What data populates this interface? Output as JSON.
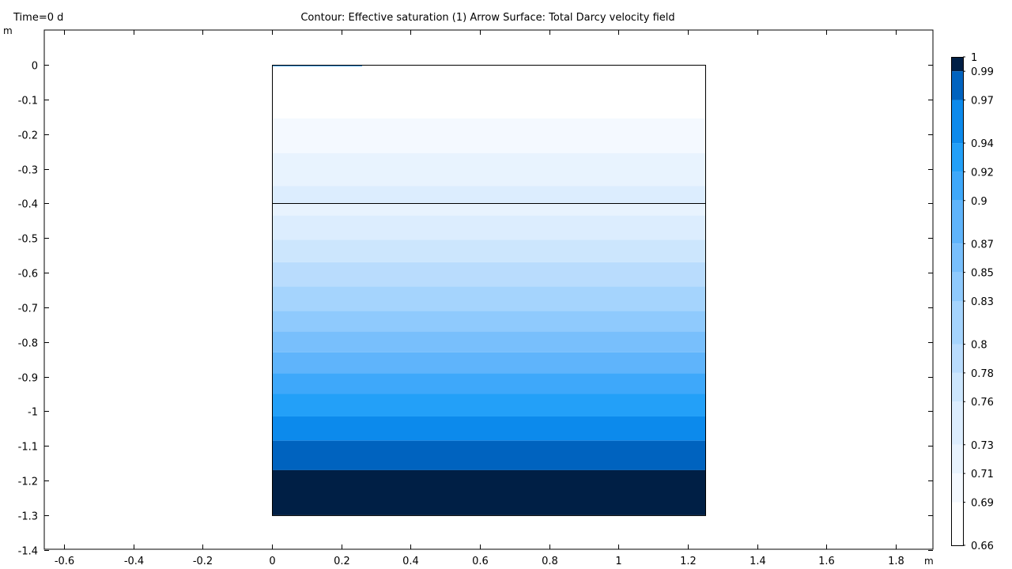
{
  "header": {
    "time_label": "Time=0 d",
    "title": "Contour: Effective saturation (1)  Arrow Surface: Total Darcy velocity field"
  },
  "axes": {
    "x_unit": "m",
    "y_unit": "m"
  },
  "chart_data": {
    "type": "heatmap",
    "title": "Contour: Effective saturation (1)  Arrow Surface: Total Darcy velocity field",
    "xlabel": "m",
    "ylabel": "m",
    "xlim": [
      -0.66,
      1.91
    ],
    "ylim": [
      -1.4,
      0.1
    ],
    "x_ticks": [
      "-0.6",
      "-0.4",
      "-0.2",
      "0",
      "0.2",
      "0.4",
      "0.6",
      "0.8",
      "1",
      "1.2",
      "1.4",
      "1.6",
      "1.8"
    ],
    "x_tick_values": [
      -0.6,
      -0.4,
      -0.2,
      0,
      0.2,
      0.4,
      0.6,
      0.8,
      1,
      1.2,
      1.4,
      1.6,
      1.8
    ],
    "y_ticks": [
      "0",
      "-0.1",
      "-0.2",
      "-0.3",
      "-0.4",
      "-0.5",
      "-0.6",
      "-0.7",
      "-0.8",
      "-0.9",
      "-1",
      "-1.1",
      "-1.2",
      "-1.3",
      "-1.4"
    ],
    "y_tick_values": [
      0,
      -0.1,
      -0.2,
      -0.3,
      -0.4,
      -0.5,
      -0.6,
      -0.7,
      -0.8,
      -0.9,
      -1,
      -1.1,
      -1.2,
      -1.3,
      -1.4
    ],
    "domain": {
      "x": [
        0,
        1.25
      ],
      "y": [
        -1.3,
        0
      ]
    },
    "interface_y": -0.4,
    "surface_band": {
      "x": [
        0,
        0.26
      ],
      "y": [
        0,
        -0.003
      ],
      "color": "#3d9be9"
    },
    "bands": [
      {
        "y": [
          -0.155,
          0
        ],
        "color": "#ffffff"
      },
      {
        "y": [
          -0.255,
          -0.155
        ],
        "color": "#f4f9ff"
      },
      {
        "y": [
          -0.35,
          -0.255
        ],
        "color": "#e8f3fe"
      },
      {
        "y": [
          -0.4,
          -0.35
        ],
        "color": "#dcedfe"
      },
      {
        "y": [
          -0.435,
          -0.4
        ],
        "color": "#e8f3fe"
      },
      {
        "y": [
          -0.505,
          -0.435
        ],
        "color": "#dcedfe"
      },
      {
        "y": [
          -0.57,
          -0.505
        ],
        "color": "#cce6fd"
      },
      {
        "y": [
          -0.64,
          -0.57
        ],
        "color": "#b9dcfd"
      },
      {
        "y": [
          -0.71,
          -0.64
        ],
        "color": "#a5d4fd"
      },
      {
        "y": [
          -0.77,
          -0.71
        ],
        "color": "#8fcafd"
      },
      {
        "y": [
          -0.83,
          -0.77
        ],
        "color": "#78bffc"
      },
      {
        "y": [
          -0.89,
          -0.83
        ],
        "color": "#5fb4fb"
      },
      {
        "y": [
          -0.95,
          -0.89
        ],
        "color": "#3ea8fa"
      },
      {
        "y": [
          -1.015,
          -0.95
        ],
        "color": "#23a0f8"
      },
      {
        "y": [
          -1.085,
          -1.015
        ],
        "color": "#0c8aec"
      },
      {
        "y": [
          -1.17,
          -1.085
        ],
        "color": "#0063bf"
      },
      {
        "y": [
          -1.3,
          -1.17
        ],
        "color": "#001f45"
      }
    ],
    "colorbar": {
      "range": [
        0.66,
        1.0
      ],
      "labels": [
        "1",
        "0.99",
        "0.97",
        "0.94",
        "0.92",
        "0.9",
        "0.87",
        "0.85",
        "0.83",
        "0.8",
        "0.78",
        "0.76",
        "0.73",
        "0.71",
        "0.69",
        "0.66"
      ],
      "label_values": [
        1.0,
        0.99,
        0.97,
        0.94,
        0.92,
        0.9,
        0.87,
        0.85,
        0.83,
        0.8,
        0.78,
        0.76,
        0.73,
        0.71,
        0.69,
        0.66
      ],
      "segments": [
        {
          "range": [
            0.99,
            1.0
          ],
          "color": "#001f45"
        },
        {
          "range": [
            0.97,
            0.99
          ],
          "color": "#0063bf"
        },
        {
          "range": [
            0.94,
            0.97
          ],
          "color": "#0c8aec"
        },
        {
          "range": [
            0.92,
            0.94
          ],
          "color": "#23a0f8"
        },
        {
          "range": [
            0.9,
            0.92
          ],
          "color": "#3ea8fa"
        },
        {
          "range": [
            0.87,
            0.9
          ],
          "color": "#5fb4fb"
        },
        {
          "range": [
            0.85,
            0.87
          ],
          "color": "#78bffc"
        },
        {
          "range": [
            0.83,
            0.85
          ],
          "color": "#8fcafd"
        },
        {
          "range": [
            0.8,
            0.83
          ],
          "color": "#a5d4fd"
        },
        {
          "range": [
            0.78,
            0.8
          ],
          "color": "#b9dcfd"
        },
        {
          "range": [
            0.76,
            0.78
          ],
          "color": "#cce6fd"
        },
        {
          "range": [
            0.73,
            0.76
          ],
          "color": "#dcedfe"
        },
        {
          "range": [
            0.71,
            0.73
          ],
          "color": "#e8f3fe"
        },
        {
          "range": [
            0.69,
            0.71
          ],
          "color": "#f4f9ff"
        },
        {
          "range": [
            0.66,
            0.69
          ],
          "color": "#ffffff"
        }
      ]
    }
  }
}
